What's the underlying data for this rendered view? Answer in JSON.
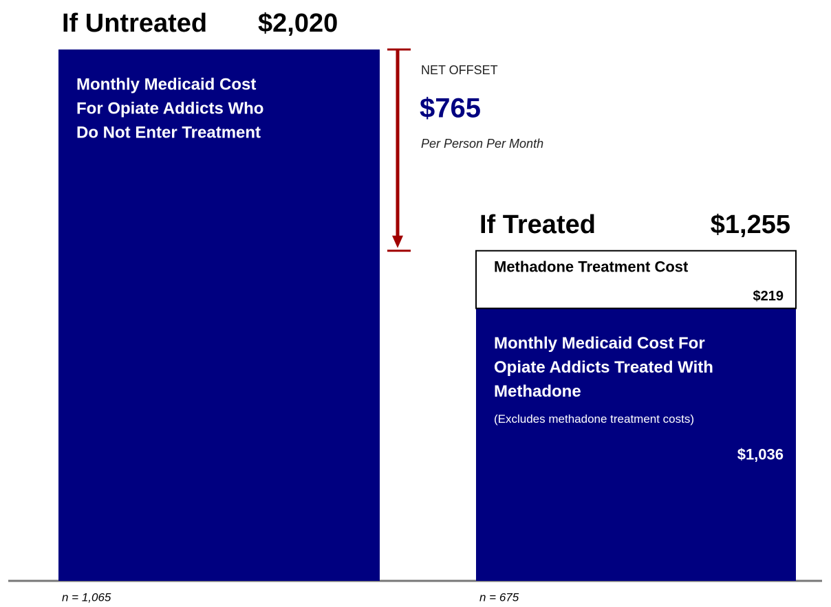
{
  "chart_data": {
    "type": "bar",
    "categories": [
      "If Untreated",
      "If Treated"
    ],
    "totals": {
      "values": [
        2020,
        1255
      ],
      "labels": [
        "$2,020",
        "$1,255"
      ]
    },
    "series": [
      {
        "color": "#000080",
        "values": [
          2020,
          1036
        ],
        "value_labels": [
          null,
          "$1,036"
        ],
        "descriptions": [
          [
            "Monthly Medicaid Cost",
            "For Opiate Addicts Who",
            "Do Not  Enter Treatment"
          ],
          [
            "Monthly Medicaid Cost For",
            "Opiate Addicts Treated With",
            "Methadone"
          ]
        ],
        "notes": [
          null,
          "(Excludes methadone treatment costs)"
        ]
      },
      {
        "name": "Methadone Treatment Cost",
        "color": "#ffffff",
        "values": [
          null,
          219
        ],
        "value_labels": [
          null,
          "$219"
        ]
      }
    ],
    "net_offset": {
      "label": "NET OFFSET",
      "value": 765,
      "value_label": "$765",
      "note": "Per Person Per Month"
    },
    "sample_sizes": [
      "n = 1,065",
      "n = 675"
    ]
  }
}
